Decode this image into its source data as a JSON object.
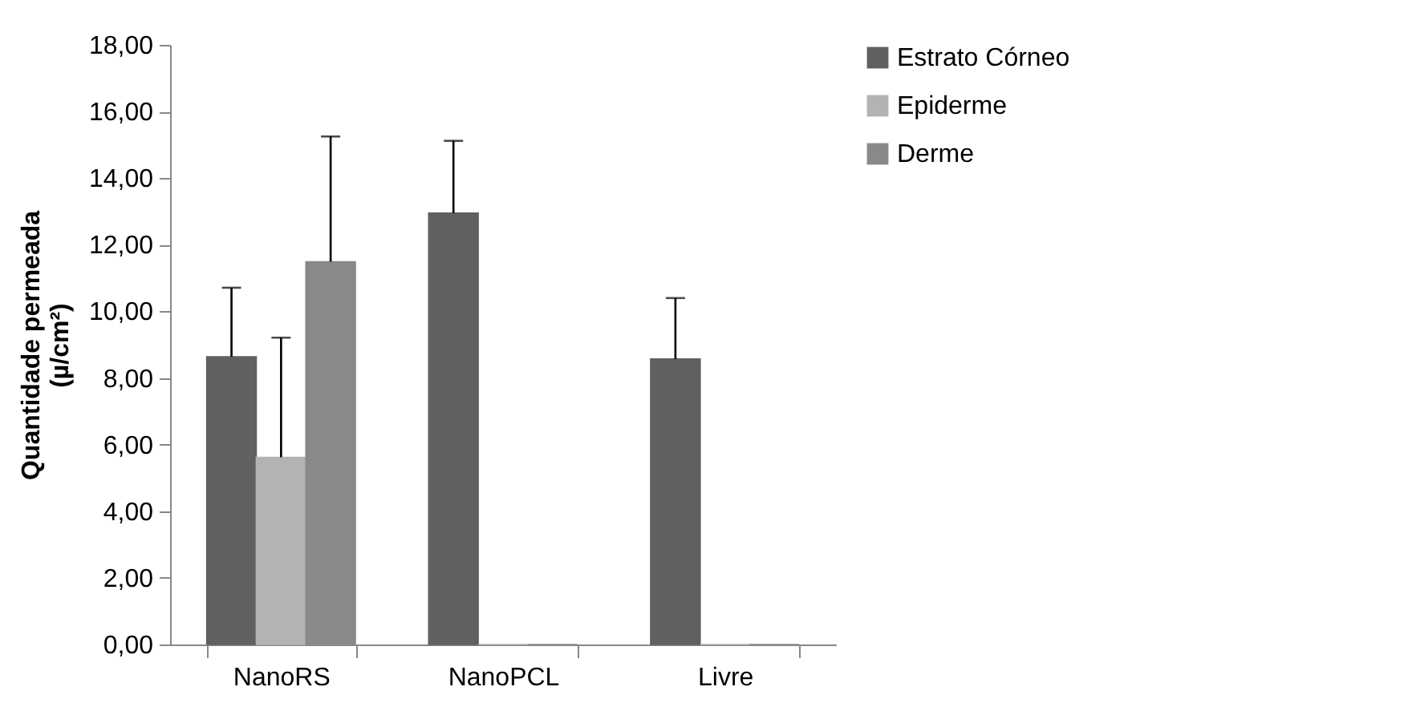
{
  "chart_data": {
    "type": "bar",
    "ylabel": "Quantidade permeada\n(µ/cm²)",
    "categories": [
      "NanoRS",
      "NanoPCL",
      "Livre"
    ],
    "series": [
      {
        "name": "Estrato Córneo",
        "color": "#606060",
        "values": [
          8.64,
          12.95,
          8.57
        ],
        "errors": [
          [
            8.64,
            10.71
          ],
          [
            12.95,
            15.12
          ],
          [
            8.57,
            10.4
          ]
        ]
      },
      {
        "name": "Epiderme",
        "color": "#b3b3b3",
        "values": [
          5.62,
          0,
          0
        ],
        "errors": [
          [
            5.62,
            9.21
          ],
          null,
          null
        ]
      },
      {
        "name": "Derme",
        "color": "#898989",
        "values": [
          11.49,
          0,
          0
        ],
        "errors": [
          [
            11.49,
            15.25
          ],
          null,
          null
        ]
      }
    ],
    "ylim": [
      0,
      18
    ],
    "yticks": [
      {
        "value": 0,
        "label": "0,00"
      },
      {
        "value": 2,
        "label": "2,00"
      },
      {
        "value": 4,
        "label": "4,00"
      },
      {
        "value": 6,
        "label": "6,00"
      },
      {
        "value": 8,
        "label": "8,00"
      },
      {
        "value": 10,
        "label": "10,00"
      },
      {
        "value": 12,
        "label": "12,00"
      },
      {
        "value": 14,
        "label": "14,00"
      },
      {
        "value": 16,
        "label": "16,00"
      },
      {
        "value": 18,
        "label": "18,00"
      }
    ],
    "grid": false,
    "legend": "right"
  }
}
